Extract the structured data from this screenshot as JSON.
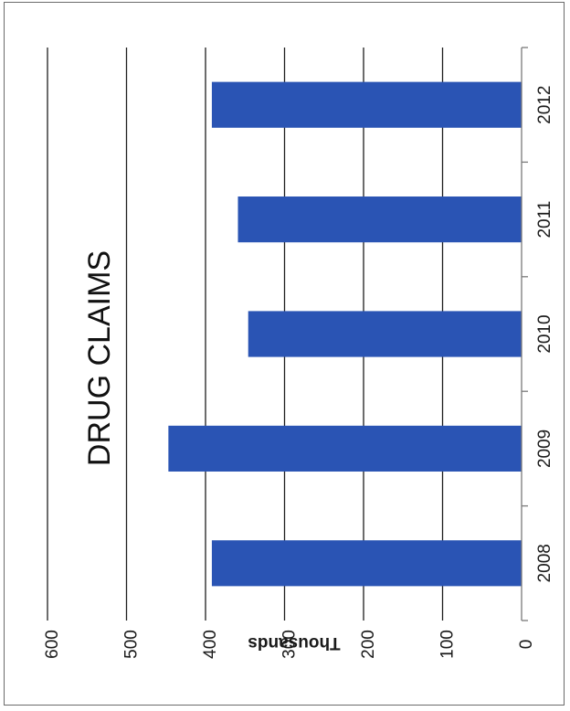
{
  "chart_data": {
    "type": "bar",
    "orientation": "horizontal-rotated",
    "title": "DRUG CLAIMS",
    "categories": [
      "2008",
      "2009",
      "2010",
      "2011",
      "2012"
    ],
    "values": [
      392,
      447,
      346,
      359,
      392
    ],
    "ylabel": "Thousands",
    "xlabel": "",
    "ylim": [
      0,
      600
    ],
    "yticks": [
      "0",
      "100",
      "200",
      "300",
      "400",
      "500",
      "600"
    ],
    "grid": true,
    "bar_color": "#2a54b4",
    "grid_color": "#1e1e1e"
  }
}
